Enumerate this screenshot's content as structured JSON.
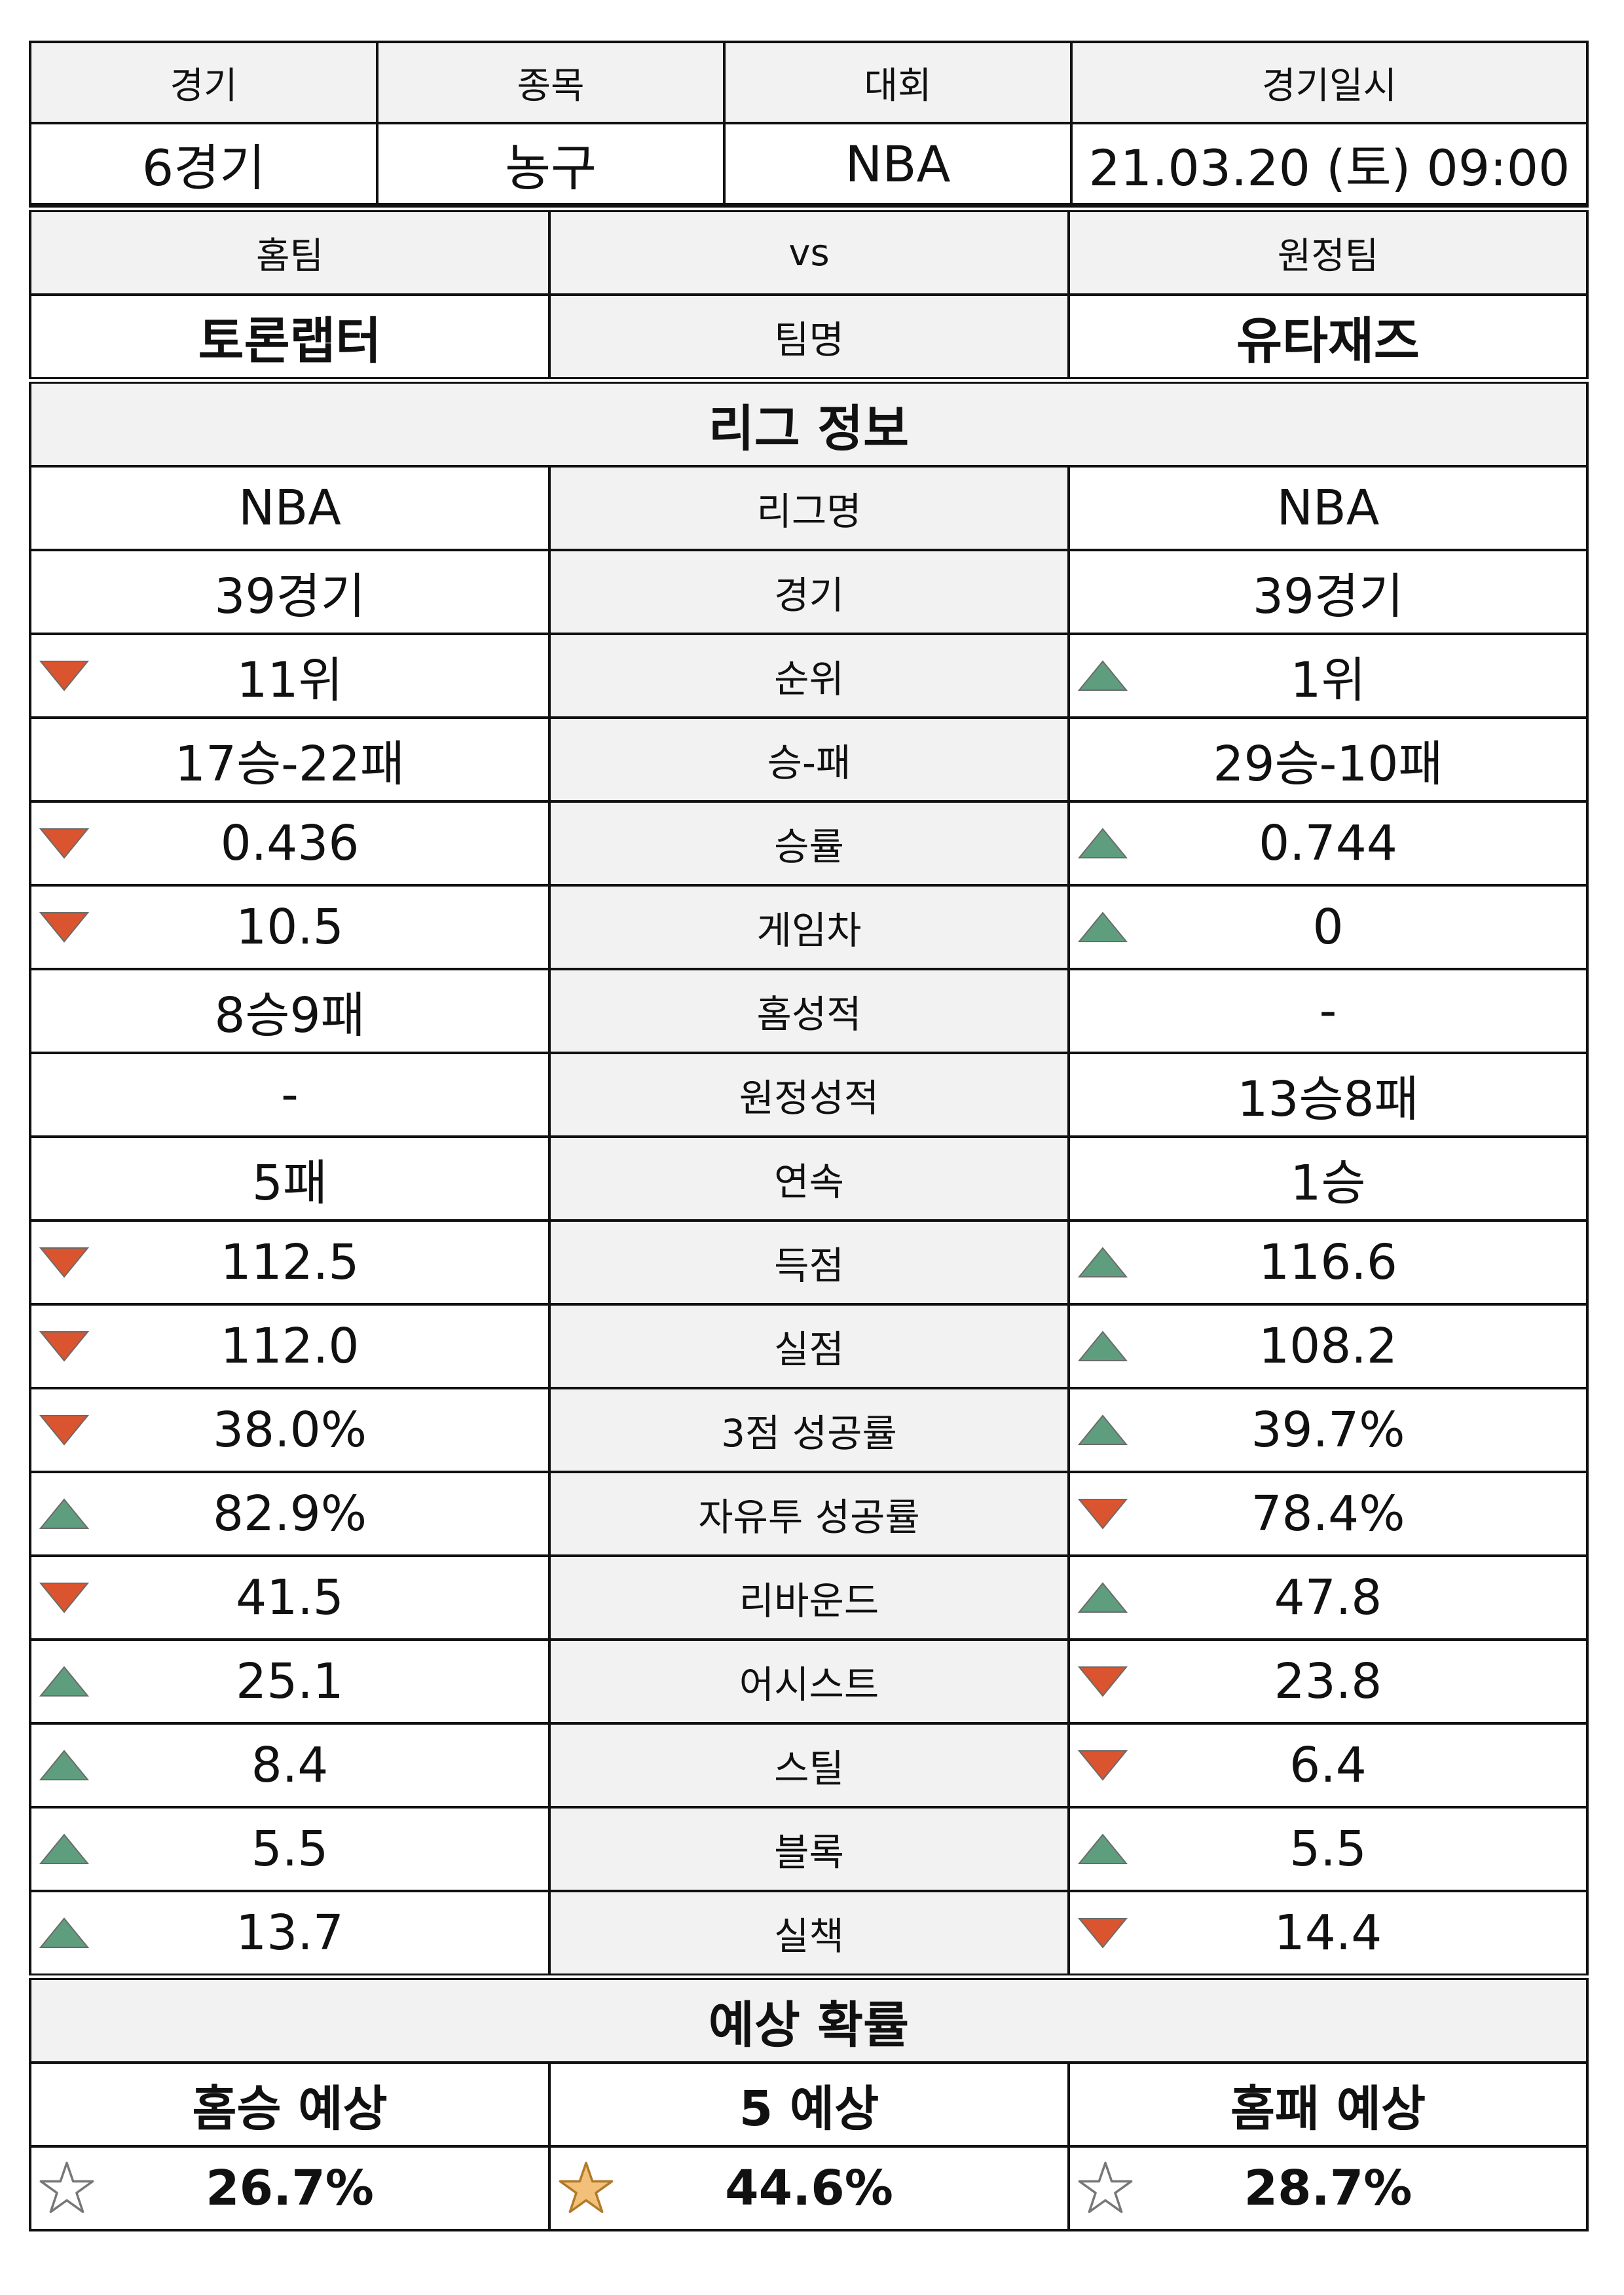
{
  "header": {
    "labels": [
      "경기",
      "종목",
      "대회",
      "경기일시"
    ],
    "values": [
      "6경기",
      "농구",
      "NBA",
      "21.03.20 (토) 09:00"
    ]
  },
  "teams": {
    "home_label": "홈팀",
    "vs_label": "vs",
    "away_label": "원정팀",
    "home_name": "토론랩터",
    "name_label": "팀명",
    "away_name": "유타재즈"
  },
  "league": {
    "title": "리그 정보",
    "rows": [
      {
        "label": "리그명",
        "home": "NBA",
        "away": "NBA",
        "home_mark": "",
        "away_mark": ""
      },
      {
        "label": "경기",
        "home": "39경기",
        "away": "39경기",
        "home_mark": "",
        "away_mark": ""
      },
      {
        "label": "순위",
        "home": "11위",
        "away": "1위",
        "home_mark": "down",
        "away_mark": "up"
      },
      {
        "label": "승-패",
        "home": "17승-22패",
        "away": "29승-10패",
        "home_mark": "",
        "away_mark": ""
      },
      {
        "label": "승률",
        "home": "0.436",
        "away": "0.744",
        "home_mark": "down",
        "away_mark": "up"
      },
      {
        "label": "게임차",
        "home": "10.5",
        "away": "0",
        "home_mark": "down",
        "away_mark": "up"
      },
      {
        "label": "홈성적",
        "home": "8승9패",
        "away": "-",
        "home_mark": "",
        "away_mark": ""
      },
      {
        "label": "원정성적",
        "home": "-",
        "away": "13승8패",
        "home_mark": "",
        "away_mark": ""
      },
      {
        "label": "연속",
        "home": "5패",
        "away": "1승",
        "home_mark": "",
        "away_mark": ""
      },
      {
        "label": "득점",
        "home": "112.5",
        "away": "116.6",
        "home_mark": "down",
        "away_mark": "up"
      },
      {
        "label": "실점",
        "home": "112.0",
        "away": "108.2",
        "home_mark": "down",
        "away_mark": "up"
      },
      {
        "label": "3점 성공률",
        "home": "38.0%",
        "away": "39.7%",
        "home_mark": "down",
        "away_mark": "up"
      },
      {
        "label": "자유투 성공률",
        "home": "82.9%",
        "away": "78.4%",
        "home_mark": "up",
        "away_mark": "down"
      },
      {
        "label": "리바운드",
        "home": "41.5",
        "away": "47.8",
        "home_mark": "down",
        "away_mark": "up"
      },
      {
        "label": "어시스트",
        "home": "25.1",
        "away": "23.8",
        "home_mark": "up",
        "away_mark": "down"
      },
      {
        "label": "스틸",
        "home": "8.4",
        "away": "6.4",
        "home_mark": "up",
        "away_mark": "down"
      },
      {
        "label": "블록",
        "home": "5.5",
        "away": "5.5",
        "home_mark": "up",
        "away_mark": "up"
      },
      {
        "label": "실책",
        "home": "13.7",
        "away": "14.4",
        "home_mark": "up",
        "away_mark": "down"
      }
    ]
  },
  "prediction": {
    "title": "예상 확률",
    "labels": [
      "홈승 예상",
      "5 예상",
      "홈패 예상"
    ],
    "values": [
      "26.7%",
      "44.6%",
      "28.7%"
    ],
    "stars": [
      "outline",
      "filled",
      "outline"
    ]
  },
  "colors": {
    "up": "#5e9e7e",
    "down": "#d9542f",
    "star_fill": "#f2c078",
    "header_bg": "#f2f2f2"
  }
}
